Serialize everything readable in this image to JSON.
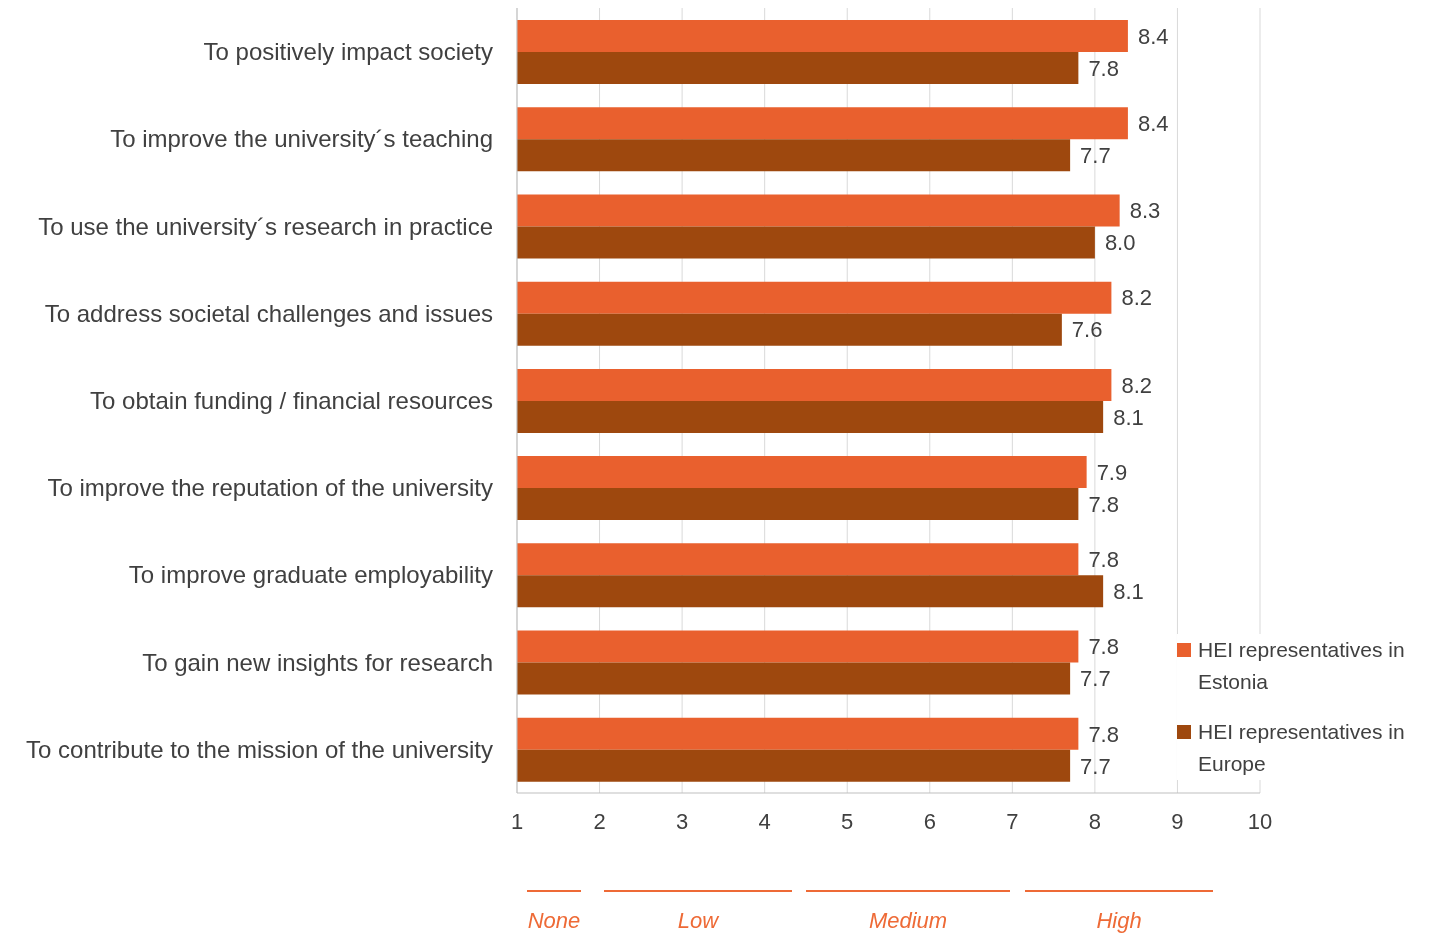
{
  "chart_data": {
    "type": "bar",
    "orientation": "horizontal",
    "categories": [
      "To positively impact society",
      "To improve the university´s teaching",
      "To use the university´s research in practice",
      "To address societal challenges and issues",
      "To obtain funding / financial resources",
      "To improve the reputation of the university",
      "To improve graduate employability",
      "To gain new insights for research",
      "To contribute to the mission of the university"
    ],
    "series": [
      {
        "name": "HEI representatives in Estonia",
        "color": "#e9602e",
        "values": [
          8.4,
          8.4,
          8.3,
          8.2,
          8.2,
          7.9,
          7.8,
          7.8,
          7.8
        ],
        "value_labels": [
          "8.4",
          "8.4",
          "8.3",
          "8.2",
          "8.2",
          "7.9",
          "7.8",
          "7.8",
          "7.8"
        ]
      },
      {
        "name": "HEI representatives in Europe",
        "color": "#9e480e",
        "values": [
          7.8,
          7.7,
          8.0,
          7.6,
          8.1,
          7.8,
          8.1,
          7.7,
          7.7
        ],
        "value_labels": [
          "7.8",
          "7.7",
          "8.0",
          "7.6",
          "8.1",
          "7.8",
          "8.1",
          "7.7",
          "7.7"
        ]
      }
    ],
    "xlim": [
      1,
      10
    ],
    "xticks": [
      1,
      2,
      3,
      4,
      5,
      6,
      7,
      8,
      9,
      10
    ],
    "grid": "x",
    "legend": "bottom right",
    "annotations": [
      "None",
      "Low",
      "Medium",
      "High"
    ]
  }
}
